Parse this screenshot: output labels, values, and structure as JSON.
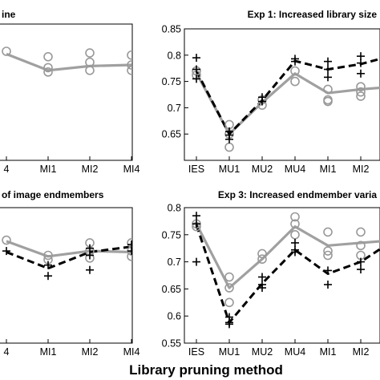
{
  "figure": {
    "xlabel": "Library pruning method",
    "colors": {
      "mean_gray": "#a0a0a0",
      "mean_black": "#000000",
      "marker_gray": "#999999"
    }
  },
  "chart_data": [
    {
      "id": "top-left",
      "type": "line",
      "title": "ine",
      "categories": [
        "4",
        "MI1",
        "MI2",
        "MI4"
      ],
      "series": [
        {
          "style": "gray-solid",
          "values": [
            0.795,
            0.765,
            0.773,
            0.775
          ]
        },
        {
          "style": "gray-circles",
          "points": [
            [
              0,
              0.8
            ],
            [
              1,
              0.79
            ],
            [
              1,
              0.77
            ],
            [
              1,
              0.762
            ],
            [
              2,
              0.797
            ],
            [
              2,
              0.78
            ],
            [
              2,
              0.765
            ],
            [
              3,
              0.793
            ],
            [
              3,
              0.775
            ],
            [
              3,
              0.765
            ]
          ]
        }
      ]
    },
    {
      "id": "top-right",
      "type": "line",
      "title": "Exp 1: Increased library size",
      "categories": [
        "IES",
        "MU1",
        "MU2",
        "MU4",
        "MI1",
        "MI2",
        ""
      ],
      "ylim": [
        0.6,
        0.85
      ],
      "yticks": [
        "0.65",
        "0.7",
        "0.75",
        "0.8",
        "0.85"
      ],
      "ytick_values": [
        0.65,
        0.7,
        0.75,
        0.8,
        0.85
      ],
      "series": [
        {
          "style": "gray-solid",
          "values": [
            0.766,
            0.65,
            0.71,
            0.765,
            0.728,
            0.735,
            0.74
          ]
        },
        {
          "style": "black-dashed",
          "values": [
            0.77,
            0.65,
            0.714,
            0.789,
            0.773,
            0.783,
            0.8
          ]
        },
        {
          "style": "gray-circles",
          "points": [
            [
              0,
              0.77
            ],
            [
              0,
              0.762
            ],
            [
              1,
              0.668
            ],
            [
              1,
              0.65
            ],
            [
              1,
              0.625
            ],
            [
              2,
              0.715
            ],
            [
              2,
              0.705
            ],
            [
              3,
              0.77
            ],
            [
              3,
              0.75
            ],
            [
              4,
              0.735
            ],
            [
              4,
              0.715
            ],
            [
              4,
              0.712
            ],
            [
              5,
              0.74
            ],
            [
              5,
              0.73
            ],
            [
              5,
              0.722
            ]
          ]
        },
        {
          "style": "black-plus",
          "points": [
            [
              0,
              0.795
            ],
            [
              0,
              0.773
            ],
            [
              0,
              0.755
            ],
            [
              1,
              0.655
            ],
            [
              1,
              0.648
            ],
            [
              1,
              0.64
            ],
            [
              2,
              0.72
            ],
            [
              2,
              0.712
            ],
            [
              3,
              0.793
            ],
            [
              3,
              0.788
            ],
            [
              4,
              0.788
            ],
            [
              4,
              0.773
            ],
            [
              4,
              0.758
            ],
            [
              5,
              0.798
            ],
            [
              5,
              0.785
            ],
            [
              5,
              0.765
            ]
          ]
        }
      ]
    },
    {
      "id": "bottom-left",
      "type": "line",
      "title": "of image endmembers",
      "categories": [
        "4",
        "MI1",
        "MI2",
        "MI4"
      ],
      "series": [
        {
          "style": "gray-solid",
          "values": [
            0.738,
            0.71,
            0.72,
            0.718
          ]
        },
        {
          "style": "black-dashed",
          "values": [
            0.718,
            0.688,
            0.718,
            0.728
          ]
        },
        {
          "style": "gray-circles",
          "points": [
            [
              0,
              0.74
            ],
            [
              1,
              0.712
            ],
            [
              1,
              0.704
            ],
            [
              2,
              0.735
            ],
            [
              2,
              0.72
            ],
            [
              2,
              0.707
            ],
            [
              3,
              0.735
            ],
            [
              3,
              0.72
            ],
            [
              3,
              0.71
            ]
          ]
        },
        {
          "style": "black-plus",
          "points": [
            [
              0,
              0.72
            ],
            [
              1,
              0.694
            ],
            [
              1,
              0.674
            ],
            [
              2,
              0.725
            ],
            [
              2,
              0.712
            ],
            [
              2,
              0.685
            ],
            [
              3,
              0.732
            ],
            [
              3,
              0.72
            ]
          ]
        }
      ]
    },
    {
      "id": "bottom-right",
      "type": "line",
      "title": "Exp 3: Increased endmember varia",
      "categories": [
        "IES",
        "MU1",
        "MU2",
        "MU4",
        "MI1",
        "MI2",
        ""
      ],
      "ylim": [
        0.55,
        0.8
      ],
      "yticks": [
        "0.55",
        "0.6",
        "0.65",
        "0.7",
        "0.75",
        "0.8"
      ],
      "ytick_values": [
        0.55,
        0.6,
        0.65,
        0.7,
        0.75,
        0.8
      ],
      "series": [
        {
          "style": "gray-solid",
          "values": [
            0.77,
            0.652,
            0.705,
            0.765,
            0.73,
            0.735,
            0.74
          ]
        },
        {
          "style": "black-dashed",
          "values": [
            0.768,
            0.588,
            0.66,
            0.722,
            0.678,
            0.7,
            0.74
          ]
        },
        {
          "style": "gray-circles",
          "points": [
            [
              0,
              0.77
            ],
            [
              0,
              0.765
            ],
            [
              1,
              0.672
            ],
            [
              1,
              0.652
            ],
            [
              1,
              0.625
            ],
            [
              2,
              0.715
            ],
            [
              2,
              0.705
            ],
            [
              3,
              0.783
            ],
            [
              3,
              0.77
            ],
            [
              3,
              0.75
            ],
            [
              4,
              0.755
            ],
            [
              4,
              0.72
            ],
            [
              4,
              0.712
            ],
            [
              5,
              0.755
            ],
            [
              5,
              0.73
            ],
            [
              5,
              0.712
            ]
          ]
        },
        {
          "style": "black-plus",
          "points": [
            [
              0,
              0.785
            ],
            [
              0,
              0.77
            ],
            [
              0,
              0.7
            ],
            [
              1,
              0.598
            ],
            [
              1,
              0.588
            ],
            [
              1,
              0.585
            ],
            [
              2,
              0.672
            ],
            [
              2,
              0.658
            ],
            [
              2,
              0.652
            ],
            [
              3,
              0.735
            ],
            [
              3,
              0.722
            ],
            [
              3,
              0.718
            ],
            [
              4,
              0.684
            ],
            [
              4,
              0.658
            ],
            [
              5,
              0.7
            ],
            [
              5,
              0.686
            ]
          ]
        }
      ]
    }
  ]
}
